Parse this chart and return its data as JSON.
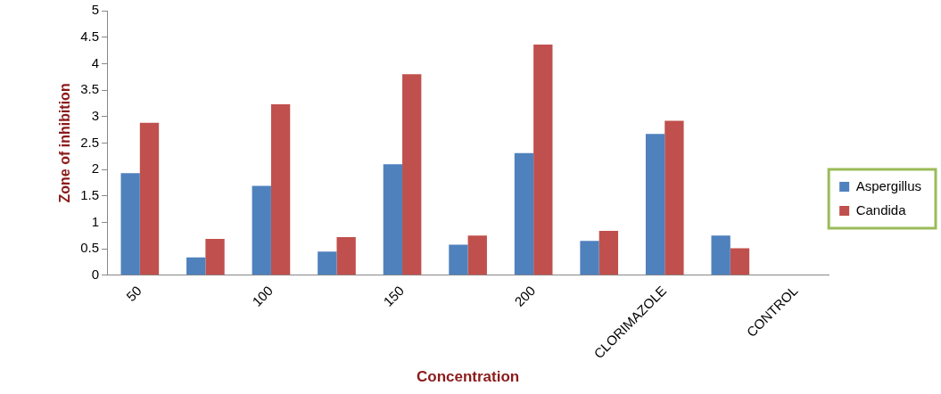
{
  "chart_data": {
    "type": "bar",
    "xlabel": "Concentration",
    "ylabel": "Zone of inhibition",
    "categories": [
      "50",
      null,
      "100",
      null,
      "150",
      null,
      "200",
      null,
      "CLORIMAZOLE",
      null,
      "CONTROL"
    ],
    "series": [
      {
        "name": "Aspergillus",
        "color": "#4f81bd",
        "values": [
          1.93,
          0.34,
          1.69,
          0.45,
          2.1,
          0.58,
          2.31,
          0.65,
          2.67,
          0.75,
          null
        ]
      },
      {
        "name": "Candida",
        "color": "#c0504d",
        "values": [
          2.88,
          0.69,
          3.23,
          0.72,
          3.8,
          0.75,
          4.36,
          0.84,
          2.92,
          0.51,
          null
        ]
      }
    ],
    "ylim": [
      0,
      5
    ],
    "yticks": [
      0,
      0.5,
      1,
      1.5,
      2,
      2.5,
      3,
      3.5,
      4,
      4.5,
      5
    ],
    "grid": false,
    "legend": "right"
  }
}
